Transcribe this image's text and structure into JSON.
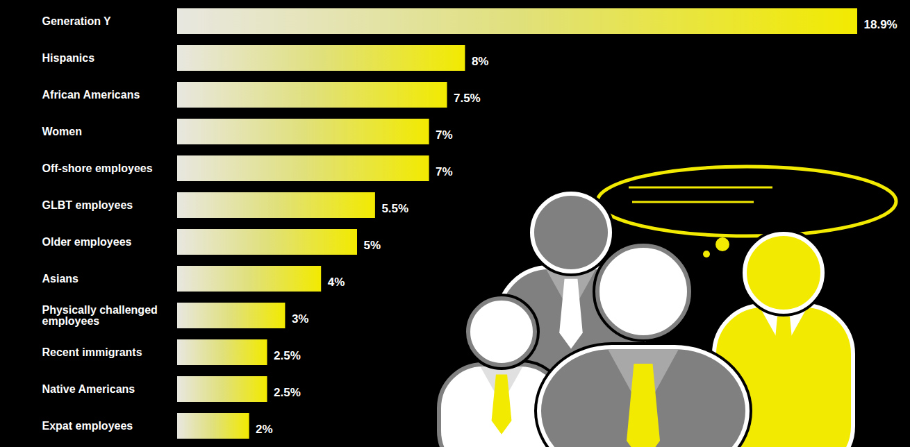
{
  "chart_data": {
    "type": "bar",
    "orientation": "horizontal",
    "categories": [
      "Generation Y",
      "Hispanics",
      "African Americans",
      "Women",
      "Off-shore employees",
      "GLBT employees",
      "Older employees",
      "Asians",
      "Physically challenged employees",
      "Recent immigrants",
      "Native Americans",
      "Expat employees"
    ],
    "values": [
      18.9,
      8,
      7.5,
      7,
      7,
      5.5,
      5,
      4,
      3,
      2.5,
      2.5,
      2
    ],
    "value_labels": [
      "18.9%",
      "8%",
      "7.5%",
      "7%",
      "7%",
      "5.5%",
      "5%",
      "4%",
      "3%",
      "2.5%",
      "2.5%",
      "2%"
    ],
    "data_labels": true,
    "color": "#f2ea00",
    "xlim": [
      0,
      18.9
    ],
    "tick_labels": false,
    "grid": false
  }
}
